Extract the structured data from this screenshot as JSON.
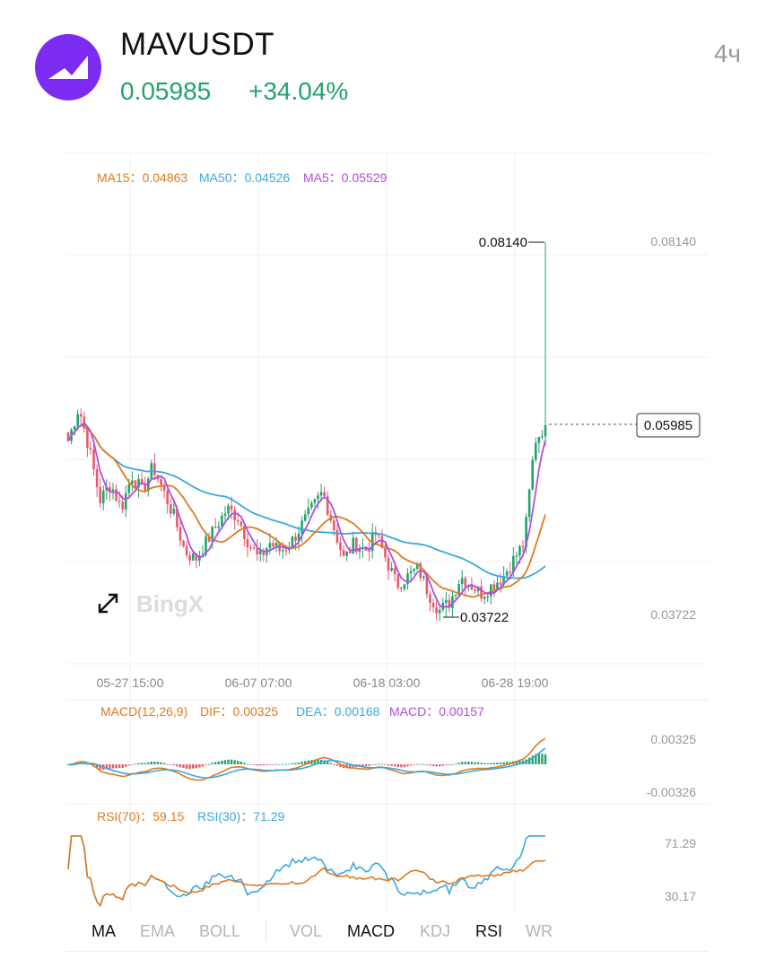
{
  "header": {
    "pair": "MAVUSDT",
    "price": "0.05985",
    "change": "+34.04%",
    "interval": "4ч",
    "logo_icon": "bing-logo-icon"
  },
  "colors": {
    "up": "#22a36a",
    "down": "#e35b6e",
    "ma15": "#e07a1f",
    "ma50": "#3aa8e0",
    "ma5": "#b24de0",
    "logo": "#7b2cf0"
  },
  "main_legend": {
    "ma15": "MA15：0.04863",
    "ma50": "MA50：0.04526",
    "ma5": "MA5：0.05529"
  },
  "watermark": "BingX",
  "expand_icon": "expand-arrows-icon",
  "markers": {
    "high_label": "0.08140",
    "low_label": "0.03722",
    "last_label": "0.05985"
  },
  "macd_legend": {
    "params": "MACD(12,26,9)",
    "dif": "DIF：0.00325",
    "dea": "DEA：0.00168",
    "macd": "MACD：0.00157"
  },
  "rsi_legend": {
    "rsi70": "RSI(70)：59.15",
    "rsi30": "RSI(30)：71.29"
  },
  "tabs": [
    "MA",
    "EMA",
    "BOLL",
    "VOL",
    "MACD",
    "KDJ",
    "RSI",
    "WR"
  ],
  "tabs_active": [
    "MA",
    "MACD",
    "RSI"
  ],
  "chart_data": [
    {
      "type": "candlestick",
      "title": "MAVUSDT 4h",
      "x_ticks": [
        "05-27 15:00",
        "06-07 07:00",
        "06-18 03:00",
        "06-28 19:00"
      ],
      "y_labels": [
        "0.08140",
        "0.03722"
      ],
      "ylim": [
        0.03722,
        0.0814
      ],
      "last_price": 0.05985,
      "period_high": 0.0814,
      "period_low": 0.03722,
      "close_path": [
        0.058,
        0.062,
        0.057,
        0.051,
        0.053,
        0.05,
        0.054,
        0.052,
        0.055,
        0.052,
        0.049,
        0.045,
        0.044,
        0.046,
        0.048,
        0.05,
        0.049,
        0.046,
        0.044,
        0.046,
        0.045,
        0.046,
        0.048,
        0.05,
        0.052,
        0.048,
        0.044,
        0.046,
        0.045,
        0.047,
        0.044,
        0.041,
        0.042,
        0.043,
        0.04,
        0.038,
        0.039,
        0.042,
        0.041,
        0.04,
        0.041,
        0.042,
        0.044,
        0.046,
        0.058,
        0.05985
      ],
      "indicators": [
        {
          "name": "MA15",
          "value": 0.04863
        },
        {
          "name": "MA50",
          "value": 0.04526
        },
        {
          "name": "MA5",
          "value": 0.05529
        }
      ]
    },
    {
      "type": "bar",
      "title": "MACD(12,26,9)",
      "series": [
        {
          "name": "DIF",
          "last": 0.00325
        },
        {
          "name": "DEA",
          "last": 0.00168
        },
        {
          "name": "MACD",
          "last": 0.00157
        }
      ],
      "y_labels": [
        "0.00325",
        "-0.00326"
      ],
      "ylim": [
        -0.00326,
        0.00325
      ]
    },
    {
      "type": "line",
      "title": "RSI",
      "series": [
        {
          "name": "RSI(70)",
          "last": 59.15
        },
        {
          "name": "RSI(30)",
          "last": 71.29
        }
      ],
      "y_labels": [
        "71.29",
        "30.17"
      ],
      "ylim": [
        30.17,
        71.29
      ]
    }
  ]
}
